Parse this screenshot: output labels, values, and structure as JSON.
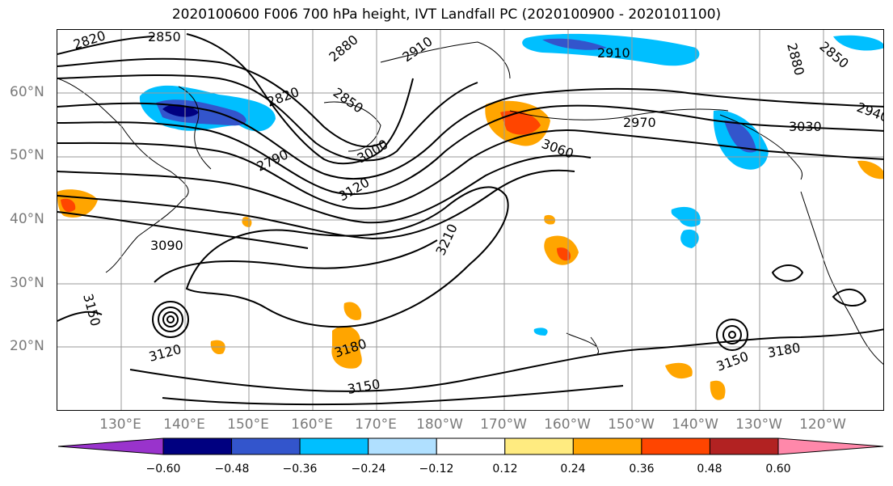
{
  "title": "2020100600 F006 700 hPa height, IVT Landfall PC (2020100900 - 2020101100)",
  "lat_labels": [
    "60°N",
    "50°N",
    "40°N",
    "30°N",
    "20°N"
  ],
  "lon_labels": [
    "130°E",
    "140°E",
    "150°E",
    "160°E",
    "170°E",
    "180°W",
    "170°W",
    "160°W",
    "150°W",
    "140°W",
    "130°W",
    "120°W"
  ],
  "contour_labels": [
    "2820",
    "2850",
    "2880",
    "2910",
    "2820",
    "2850",
    "2790",
    "3000",
    "3120",
    "3090",
    "3150",
    "3120",
    "3180",
    "3150",
    "3210",
    "2910",
    "2970",
    "3060",
    "3030",
    "2940",
    "2880",
    "2850",
    "3180",
    "3150"
  ],
  "colorbar": {
    "ticks": [
      "−0.60",
      "−0.48",
      "−0.36",
      "−0.24",
      "−0.12",
      "0.12",
      "0.24",
      "0.36",
      "0.48",
      "0.60"
    ],
    "colors": [
      "#9933cc",
      "#000080",
      "#3355cc",
      "#00bfff",
      "#b0e0ff",
      "#ffffff",
      "#ffeb80",
      "#ffa500",
      "#ff4500",
      "#b22222",
      "#ff88aa"
    ]
  }
}
